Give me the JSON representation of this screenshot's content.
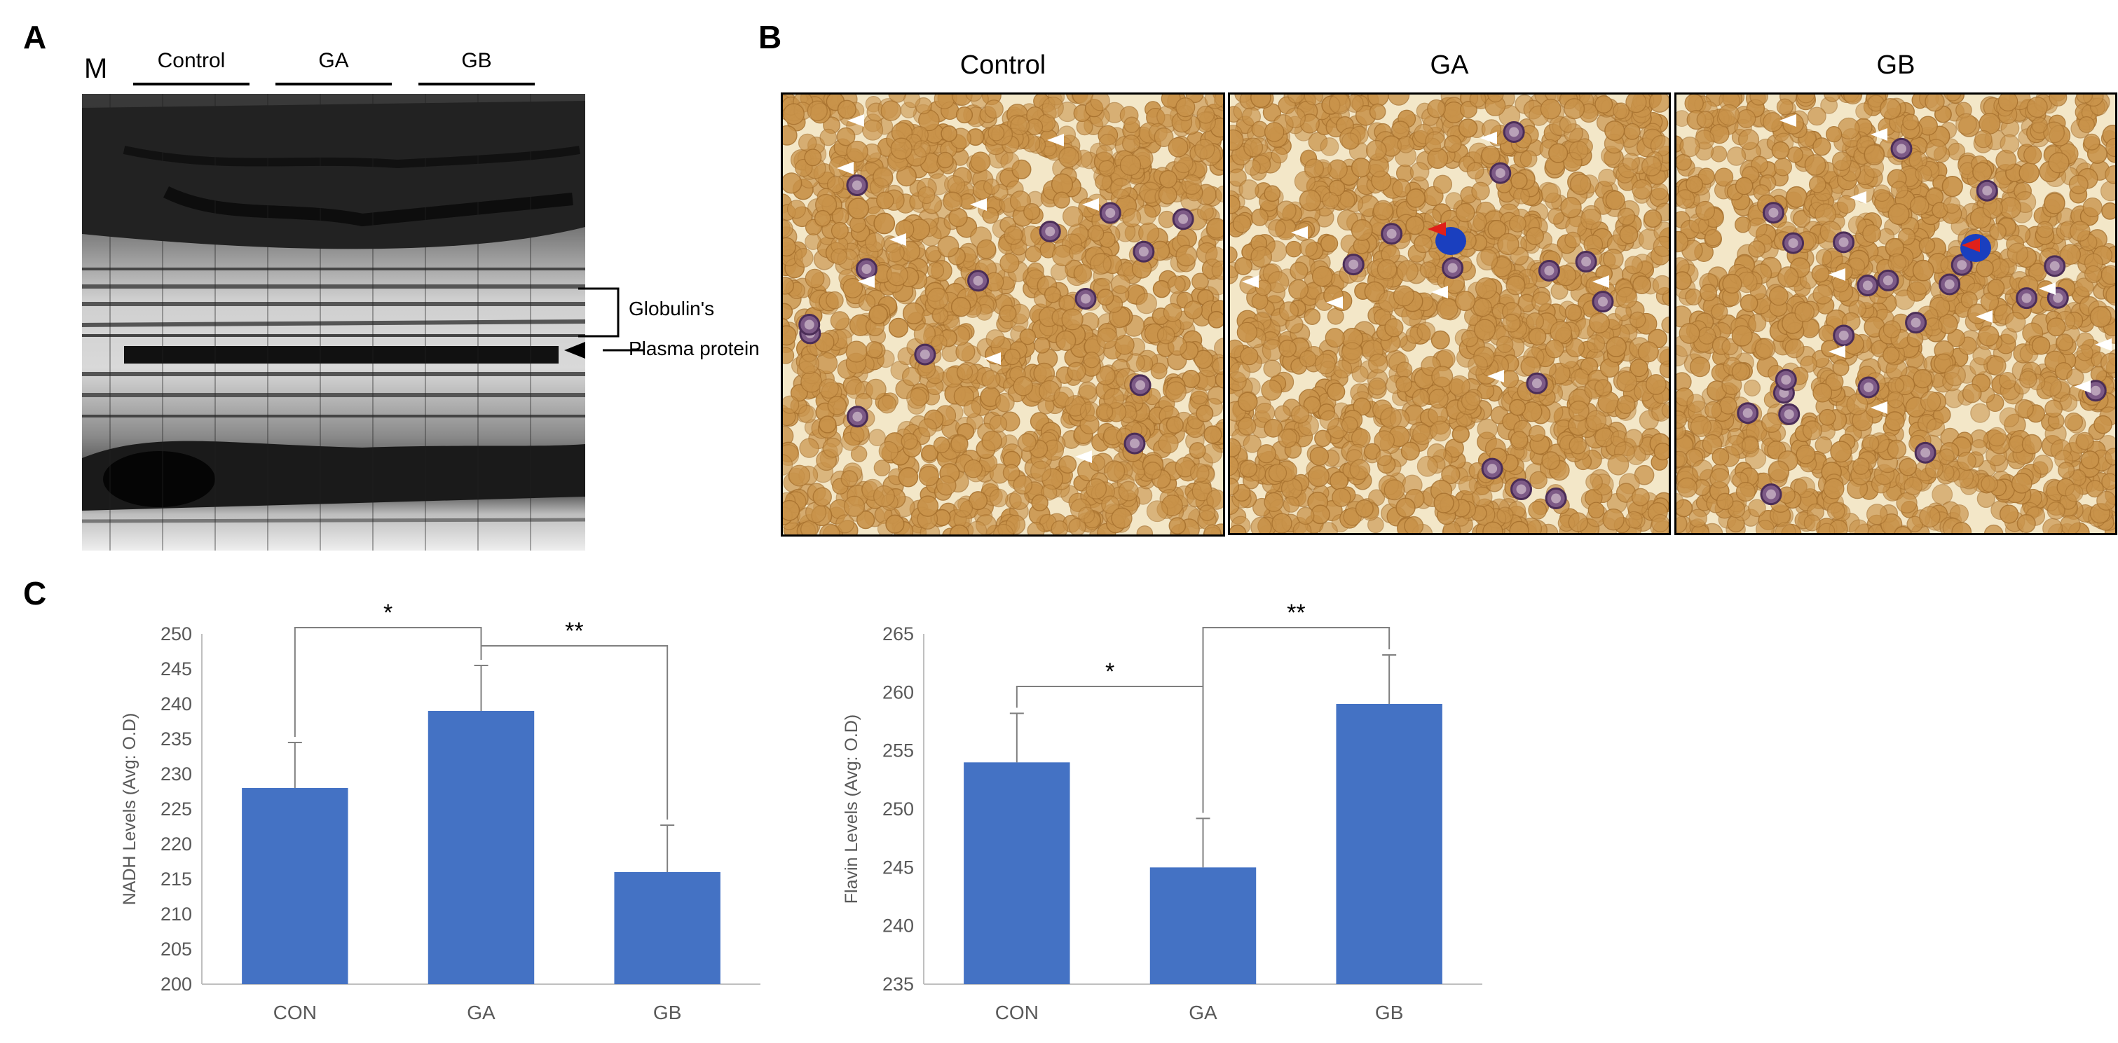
{
  "panels": {
    "a": {
      "label": "A",
      "marker": "M",
      "groups": [
        "Control",
        "GA",
        "GB"
      ],
      "globulins": "Globulin's",
      "plasma": "Plasma protein"
    },
    "b": {
      "label": "B",
      "titles": [
        "Control",
        "GA",
        "GB"
      ]
    },
    "c": {
      "label": "C"
    }
  },
  "colors": {
    "bar": "#4472c4",
    "axis": "#bfbfbf",
    "tick_text": "#595959",
    "rbc": "#c9934a",
    "background_micro": "#f3e7c8",
    "stained_cell": "#7d5a86",
    "blue_cell": "#1a3fbf",
    "arrow_white": "#ffffff",
    "arrow_red": "#e0201a"
  },
  "chart_data": [
    {
      "type": "bar",
      "categories": [
        "CON",
        "GA",
        "GB"
      ],
      "values": [
        228,
        239,
        216
      ],
      "errors": [
        6.5,
        6.5,
        6.7
      ],
      "ylabel": "NADH Levels (Avg: O.D)",
      "ylim": [
        200,
        250
      ],
      "yticks": [
        200,
        205,
        210,
        215,
        220,
        225,
        230,
        235,
        240,
        245,
        250
      ],
      "grid": false,
      "significance": [
        {
          "from": "CON",
          "to": "GA",
          "label": "*"
        },
        {
          "from": "GA",
          "to": "GB",
          "label": "**"
        }
      ]
    },
    {
      "type": "bar",
      "categories": [
        "CON",
        "GA",
        "GB"
      ],
      "values": [
        254,
        245,
        259
      ],
      "errors": [
        4.2,
        4.2,
        4.2
      ],
      "ylabel": "Flavin Levels (Avg: O.D)",
      "ylim": [
        235,
        265
      ],
      "yticks": [
        235,
        240,
        245,
        250,
        255,
        260,
        265
      ],
      "grid": false,
      "significance": [
        {
          "from": "CON",
          "to": "GA",
          "label": "*"
        },
        {
          "from": "GA",
          "to": "GB",
          "label": "**"
        }
      ]
    }
  ]
}
